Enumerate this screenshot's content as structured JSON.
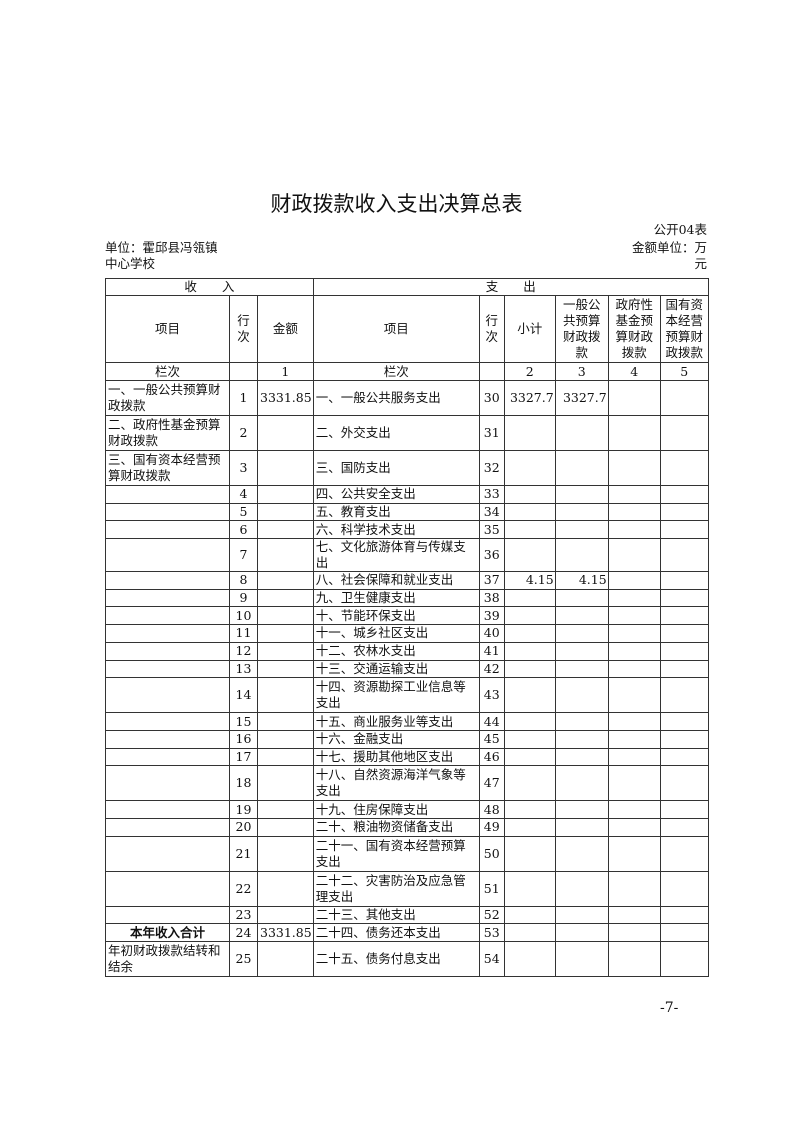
{
  "title": "财政拨款收入支出决算总表",
  "form_no": "公开04表",
  "unit_line1": "单位：霍邱县冯瓴镇",
  "unit_line2": "中心学校",
  "amount_unit_line1": "金额单位：万",
  "amount_unit_line2": "元",
  "header": {
    "income": "收　　入",
    "expense": "支　　出",
    "item": "项目",
    "line_no": "行次",
    "amount": "金额",
    "exp_item": "项目",
    "exp_line_no": "行次",
    "subtotal": "小计",
    "general": "一般公共预算财政拨款",
    "gov_fund": "政府性基金预算财政拨款",
    "state_capital": "国有资本经营预算财政拨款",
    "col_label": "栏次",
    "col1": "1",
    "exp_col_label": "栏次",
    "col2": "2",
    "col3": "3",
    "col4": "4",
    "col5": "5"
  },
  "rows": [
    {
      "in_item": "一、一般公共预算财政拨款",
      "in_no": "1",
      "in_amt": "3331.85",
      "ex_item": "一、一般公共服务支出",
      "ex_no": "30",
      "sub": "3327.7",
      "gen": "3327.7",
      "h": "d"
    },
    {
      "in_item": "二、政府性基金预算财政拨款",
      "in_no": "2",
      "in_amt": "",
      "ex_item": "二、外交支出",
      "ex_no": "31",
      "sub": "",
      "gen": "",
      "h": "d"
    },
    {
      "in_item": "三、国有资本经营预算财政拨款",
      "in_no": "3",
      "in_amt": "",
      "ex_item": "三、国防支出",
      "ex_no": "32",
      "sub": "",
      "gen": "",
      "h": "d"
    },
    {
      "in_item": "",
      "in_no": "4",
      "in_amt": "",
      "ex_item": "四、公共安全支出",
      "ex_no": "33",
      "sub": "",
      "gen": "",
      "h": "s"
    },
    {
      "in_item": "",
      "in_no": "5",
      "in_amt": "",
      "ex_item": "五、教育支出",
      "ex_no": "34",
      "sub": "",
      "gen": "",
      "h": "s"
    },
    {
      "in_item": "",
      "in_no": "6",
      "in_amt": "",
      "ex_item": "六、科学技术支出",
      "ex_no": "35",
      "sub": "",
      "gen": "",
      "h": "s"
    },
    {
      "in_item": "",
      "in_no": "7",
      "in_amt": "",
      "ex_item": "七、文化旅游体育与传媒支出",
      "ex_no": "36",
      "sub": "",
      "gen": "",
      "h": "s"
    },
    {
      "in_item": "",
      "in_no": "8",
      "in_amt": "",
      "ex_item": "八、社会保障和就业支出",
      "ex_no": "37",
      "sub": "4.15",
      "gen": "4.15",
      "h": "s"
    },
    {
      "in_item": "",
      "in_no": "9",
      "in_amt": "",
      "ex_item": "九、卫生健康支出",
      "ex_no": "38",
      "sub": "",
      "gen": "",
      "h": "s"
    },
    {
      "in_item": "",
      "in_no": "10",
      "in_amt": "",
      "ex_item": "十、节能环保支出",
      "ex_no": "39",
      "sub": "",
      "gen": "",
      "h": "s"
    },
    {
      "in_item": "",
      "in_no": "11",
      "in_amt": "",
      "ex_item": "十一、城乡社区支出",
      "ex_no": "40",
      "sub": "",
      "gen": "",
      "h": "s"
    },
    {
      "in_item": "",
      "in_no": "12",
      "in_amt": "",
      "ex_item": "十二、农林水支出",
      "ex_no": "41",
      "sub": "",
      "gen": "",
      "h": "s"
    },
    {
      "in_item": "",
      "in_no": "13",
      "in_amt": "",
      "ex_item": "十三、交通运输支出",
      "ex_no": "42",
      "sub": "",
      "gen": "",
      "h": "s"
    },
    {
      "in_item": "",
      "in_no": "14",
      "in_amt": "",
      "ex_item": "十四、资源勘探工业信息等支出",
      "ex_no": "43",
      "sub": "",
      "gen": "",
      "h": "d"
    },
    {
      "in_item": "",
      "in_no": "15",
      "in_amt": "",
      "ex_item": "十五、商业服务业等支出",
      "ex_no": "44",
      "sub": "",
      "gen": "",
      "h": "s"
    },
    {
      "in_item": "",
      "in_no": "16",
      "in_amt": "",
      "ex_item": "十六、金融支出",
      "ex_no": "45",
      "sub": "",
      "gen": "",
      "h": "s"
    },
    {
      "in_item": "",
      "in_no": "17",
      "in_amt": "",
      "ex_item": "十七、援助其他地区支出",
      "ex_no": "46",
      "sub": "",
      "gen": "",
      "h": "s"
    },
    {
      "in_item": "",
      "in_no": "18",
      "in_amt": "",
      "ex_item": "十八、自然资源海洋气象等支出",
      "ex_no": "47",
      "sub": "",
      "gen": "",
      "h": "d"
    },
    {
      "in_item": "",
      "in_no": "19",
      "in_amt": "",
      "ex_item": "十九、住房保障支出",
      "ex_no": "48",
      "sub": "",
      "gen": "",
      "h": "s"
    },
    {
      "in_item": "",
      "in_no": "20",
      "in_amt": "",
      "ex_item": "二十、粮油物资储备支出",
      "ex_no": "49",
      "sub": "",
      "gen": "",
      "h": "s"
    },
    {
      "in_item": "",
      "in_no": "21",
      "in_amt": "",
      "ex_item": "二十一、国有资本经营预算支出",
      "ex_no": "50",
      "sub": "",
      "gen": "",
      "h": "d"
    },
    {
      "in_item": "",
      "in_no": "22",
      "in_amt": "",
      "ex_item": "二十二、灾害防治及应急管理支出",
      "ex_no": "51",
      "sub": "",
      "gen": "",
      "h": "d"
    },
    {
      "in_item": "",
      "in_no": "23",
      "in_amt": "",
      "ex_item": "二十三、其他支出",
      "ex_no": "52",
      "sub": "",
      "gen": "",
      "h": "s"
    },
    {
      "in_item": "本年收入合计",
      "in_no": "24",
      "in_amt": "3331.85",
      "ex_item": "二十四、债务还本支出",
      "ex_no": "53",
      "sub": "",
      "gen": "",
      "h": "s",
      "bold": true
    },
    {
      "in_item": "年初财政拨款结转和结余",
      "in_no": "25",
      "in_amt": "",
      "ex_item": "二十五、债务付息支出",
      "ex_no": "54",
      "sub": "",
      "gen": "",
      "h": "d"
    }
  ],
  "page_number": "-7-"
}
